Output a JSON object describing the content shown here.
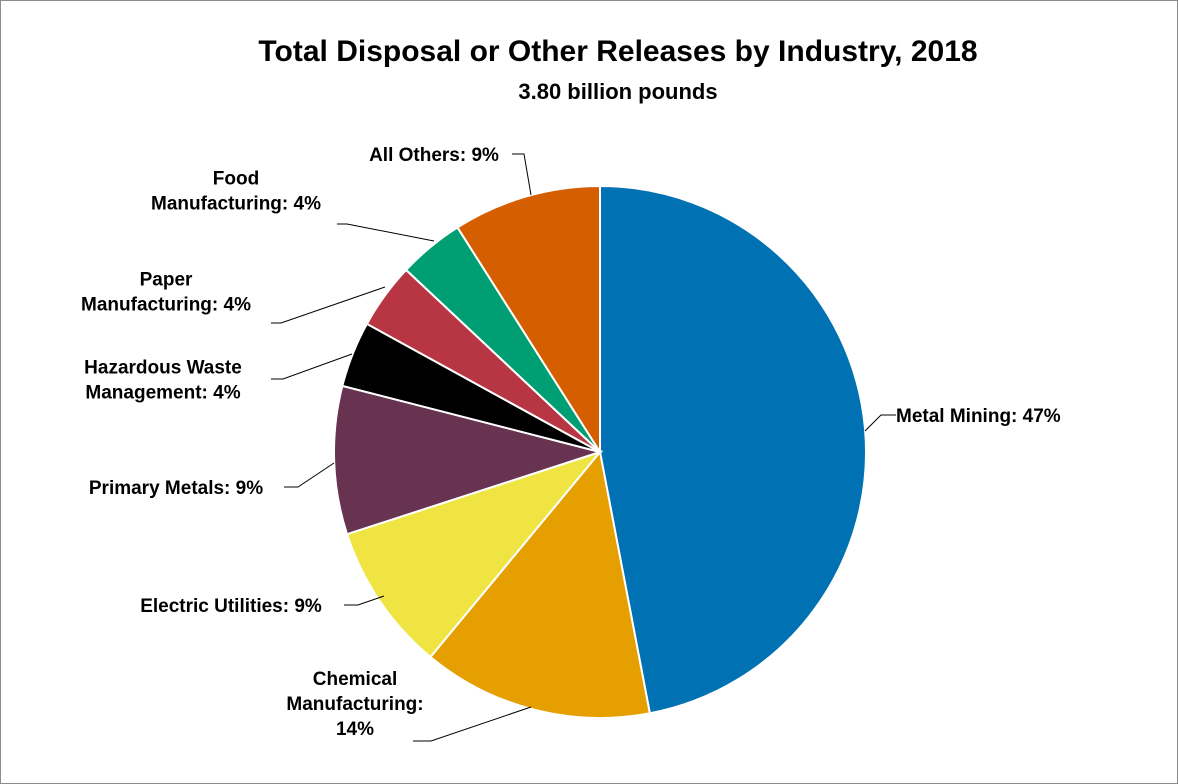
{
  "chart_data": {
    "type": "pie",
    "title": "Total Disposal or Other Releases by Industry, 2018",
    "subtitle": "3.80 billion pounds",
    "slices": [
      {
        "name": "Metal Mining",
        "value": 47,
        "label_lines": [
          "Metal Mining: 47%"
        ],
        "color": "#0071b2"
      },
      {
        "name": "Chemical Manufacturing",
        "value": 14,
        "label_lines": [
          "Chemical",
          "Manufacturing:",
          "14%"
        ],
        "color": "#e69f00"
      },
      {
        "name": "Electric Utilities",
        "value": 9,
        "label_lines": [
          "Electric Utilities: 9%"
        ],
        "color": "#f0e442"
      },
      {
        "name": "Primary Metals",
        "value": 9,
        "label_lines": [
          "Primary Metals: 9%"
        ],
        "color": "#683351"
      },
      {
        "name": "Hazardous Waste Management",
        "value": 4,
        "label_lines": [
          "Hazardous Waste",
          "Management: 4%"
        ],
        "color": "#000000"
      },
      {
        "name": "Paper Manufacturing",
        "value": 4,
        "label_lines": [
          "Paper",
          "Manufacturing: 4%"
        ],
        "color": "#b83543"
      },
      {
        "name": "Food Manufacturing",
        "value": 4,
        "label_lines": [
          "Food",
          "Manufacturing: 4%"
        ],
        "color": "#009e73"
      },
      {
        "name": "All Others",
        "value": 9,
        "label_lines": [
          "All Others: 9%"
        ],
        "color": "#d55e00"
      }
    ],
    "start_angle": "12 o'clock",
    "direction": "clockwise",
    "legend": "none"
  }
}
